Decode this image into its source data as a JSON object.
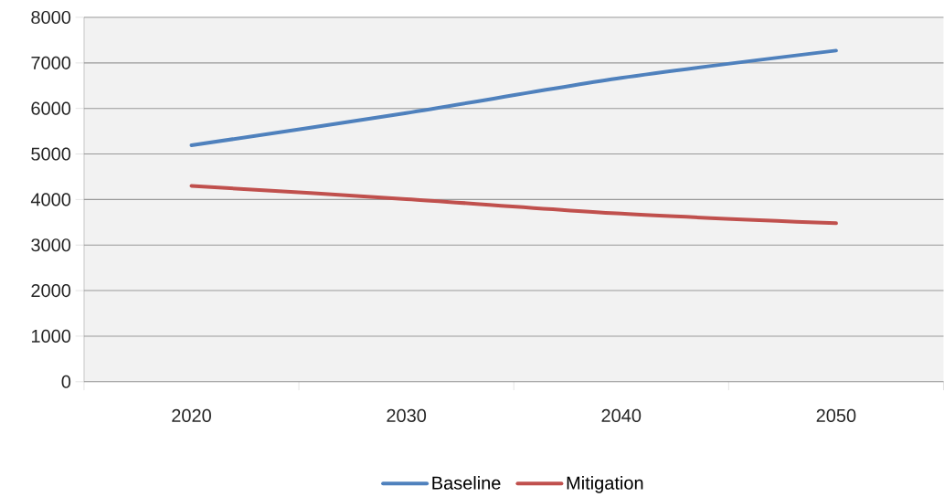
{
  "chart_data": {
    "type": "line",
    "categories": [
      "2020",
      "2030",
      "2040",
      "2050"
    ],
    "series": [
      {
        "name": "Baseline",
        "color": "#4f81bd",
        "values": [
          5190,
          5900,
          6670,
          7270
        ]
      },
      {
        "name": "Mitigation",
        "color": "#c0504d",
        "values": [
          4300,
          4010,
          3690,
          3480
        ]
      }
    ],
    "ylim": [
      0,
      8000
    ],
    "yticks": [
      0,
      1000,
      2000,
      3000,
      4000,
      5000,
      6000,
      7000,
      8000
    ],
    "grid": "y",
    "legend": "bottom",
    "marker": "none",
    "line_style": "solid"
  }
}
